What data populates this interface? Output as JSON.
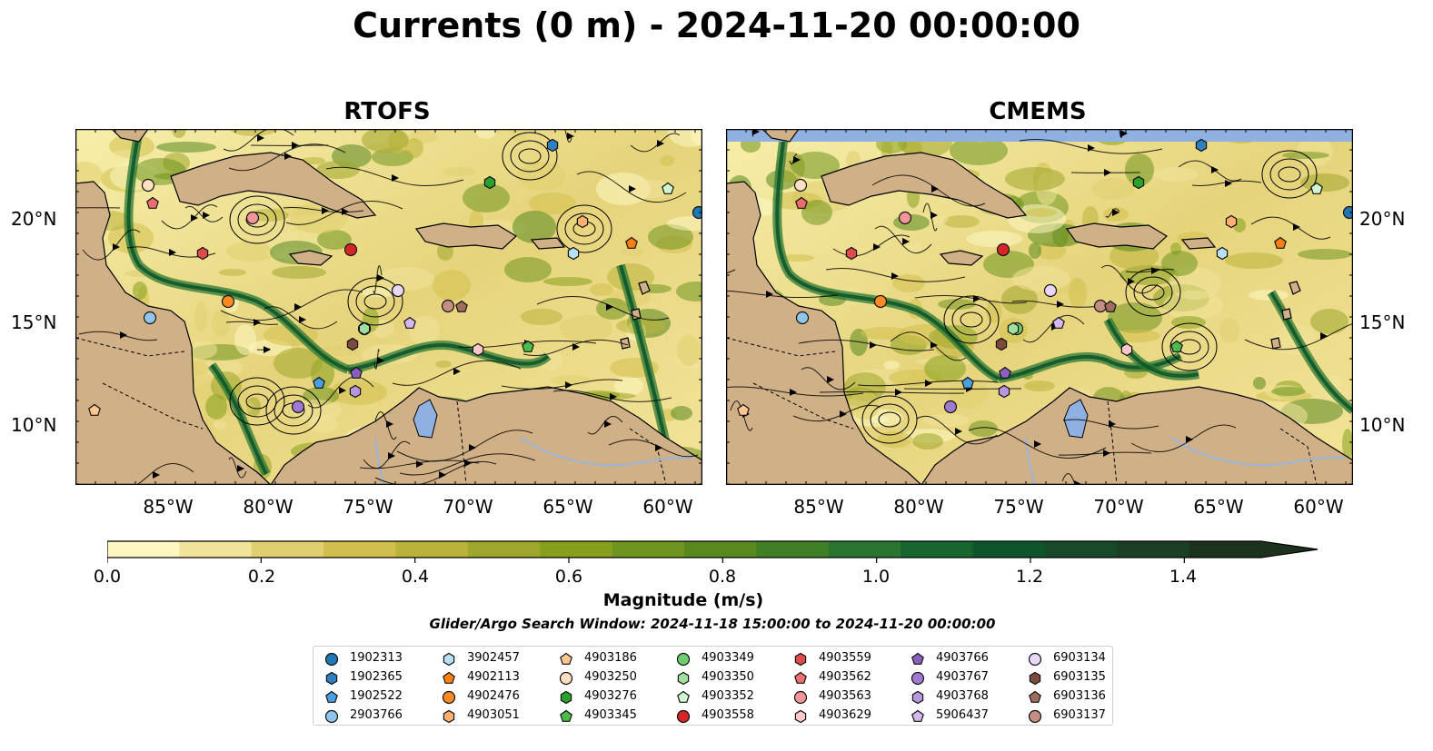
{
  "title": "Currents (0 m) - 2024-11-20 00:00:00",
  "panels": [
    {
      "title": "RTOFS"
    },
    {
      "title": "CMEMS"
    }
  ],
  "lat_labels": [
    "20°N",
    "15°N",
    "10°N"
  ],
  "lon_labels": [
    "85°W",
    "80°W",
    "75°W",
    "70°W",
    "65°W",
    "60°W"
  ],
  "colorbar": {
    "label": "Magnitude (m/s)",
    "ticks": [
      "0.0",
      "0.2",
      "0.4",
      "0.6",
      "0.8",
      "1.0",
      "1.2",
      "1.4"
    ],
    "min": 0.0,
    "max": 1.5,
    "extend": "max",
    "colors": [
      "#fdf7c2",
      "#f0e39a",
      "#e0cf6f",
      "#d1bf4d",
      "#b9b33a",
      "#9fa62c",
      "#86a01e",
      "#6f951f",
      "#57891f",
      "#3f7f26",
      "#2a7530",
      "#17652f",
      "#0f552b",
      "#164a29",
      "#1a3f24",
      "#1d321c"
    ]
  },
  "search_window": "Glider/Argo Search Window: 2024-11-18 15:00:00 to 2024-11-20 00:00:00",
  "colors": {
    "land": "#cfb087",
    "lake": "#8fb0e0",
    "ocean_low": "#fdf7c2",
    "ocean_high": "#1d5f2b"
  },
  "legend": [
    {
      "label": "1902313",
      "marker": "circle",
      "color": "#1f77b4"
    },
    {
      "label": "1902365",
      "marker": "hexagon",
      "color": "#2f7fc1"
    },
    {
      "label": "1902522",
      "marker": "pentagon",
      "color": "#4a9fe0"
    },
    {
      "label": "2903766",
      "marker": "circle",
      "color": "#92c5ec"
    },
    {
      "label": "3902457",
      "marker": "hexagon",
      "color": "#b7e0f7"
    },
    {
      "label": "4902113",
      "marker": "pentagon",
      "color": "#ff7f0e"
    },
    {
      "label": "4902476",
      "marker": "circle",
      "color": "#ff8a24"
    },
    {
      "label": "4903051",
      "marker": "hexagon",
      "color": "#ffb070"
    },
    {
      "label": "4903186",
      "marker": "pentagon",
      "color": "#ffc690"
    },
    {
      "label": "4903250",
      "marker": "circle",
      "color": "#ffe0c0"
    },
    {
      "label": "4903276",
      "marker": "hexagon",
      "color": "#2ca02c"
    },
    {
      "label": "4903345",
      "marker": "pentagon",
      "color": "#4cbb4c"
    },
    {
      "label": "4903349",
      "marker": "circle",
      "color": "#6fcf6f"
    },
    {
      "label": "4903350",
      "marker": "hexagon",
      "color": "#9fe09f"
    },
    {
      "label": "4903352",
      "marker": "pentagon",
      "color": "#d0f5d0"
    },
    {
      "label": "4903558",
      "marker": "circle",
      "color": "#d62728"
    },
    {
      "label": "4903559",
      "marker": "hexagon",
      "color": "#e04a4a"
    },
    {
      "label": "4903562",
      "marker": "pentagon",
      "color": "#ee6e70"
    },
    {
      "label": "4903563",
      "marker": "circle",
      "color": "#f49597"
    },
    {
      "label": "4903629",
      "marker": "hexagon",
      "color": "#fbc7c8"
    },
    {
      "label": "4903766",
      "marker": "pentagon",
      "color": "#8a5fbf"
    },
    {
      "label": "4903767",
      "marker": "circle",
      "color": "#a07ad0"
    },
    {
      "label": "4903768",
      "marker": "hexagon",
      "color": "#b896dd"
    },
    {
      "label": "5906437",
      "marker": "pentagon",
      "color": "#d4b8ee"
    },
    {
      "label": "6903134",
      "marker": "circle",
      "color": "#ead6f7"
    },
    {
      "label": "6903135",
      "marker": "hexagon",
      "color": "#7b4a3c"
    },
    {
      "label": "6903136",
      "marker": "pentagon",
      "color": "#a06c5c"
    },
    {
      "label": "6903137",
      "marker": "circle",
      "color": "#c58e82"
    }
  ]
}
